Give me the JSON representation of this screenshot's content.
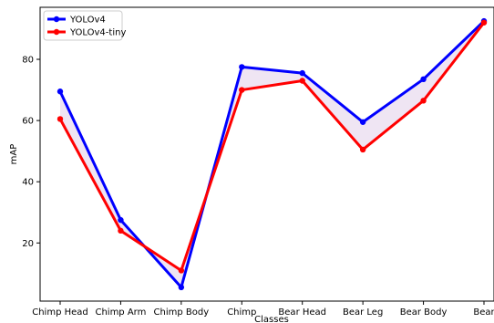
{
  "chart_data": {
    "type": "line",
    "xlabel": "Classes",
    "ylabel": "mAP",
    "categories": [
      "Chimp Head",
      "Chimp Arm",
      "Chimp Body",
      "Chimp",
      "Bear Head",
      "Bear Leg",
      "Bear Body",
      "Bear"
    ],
    "y_ticks": [
      20,
      40,
      60,
      80
    ],
    "ylim": [
      1,
      97
    ],
    "grid": false,
    "legend_position": "top-left",
    "fill_between": {
      "color": "#7a2a9a",
      "opacity": 0.12
    },
    "series": [
      {
        "name": "YOLOv4",
        "color": "#0000ff",
        "values": [
          69.5,
          27.5,
          5.5,
          77.5,
          75.5,
          59.5,
          73.5,
          92.5
        ]
      },
      {
        "name": "YOLOv4-tiny",
        "color": "#ff0000",
        "values": [
          60.5,
          24.0,
          11.0,
          70.0,
          73.0,
          50.5,
          66.5,
          92.0
        ]
      }
    ]
  }
}
